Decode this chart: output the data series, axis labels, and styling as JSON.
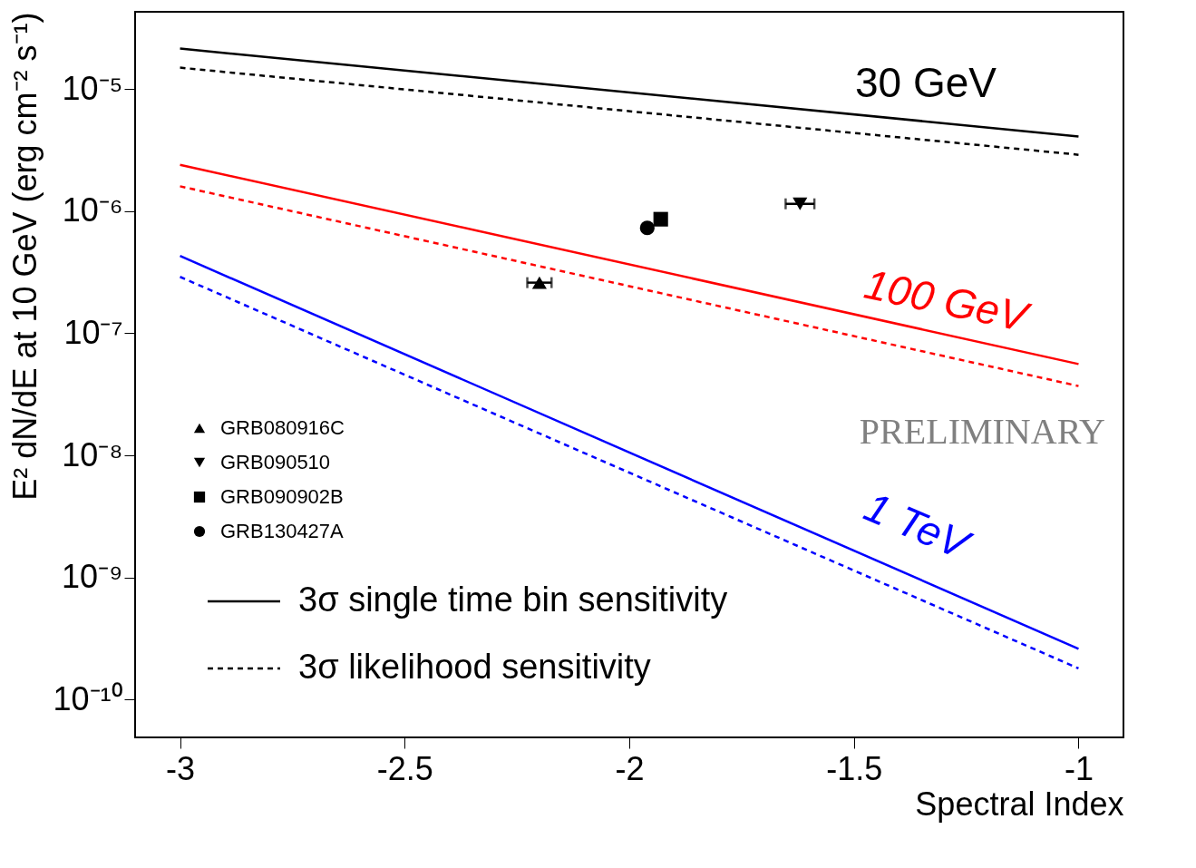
{
  "chart_data": {
    "type": "line",
    "xlabel": "Spectral Index",
    "ylabel": "E² dN/dE at 10 GeV (erg cm⁻² s⁻¹)",
    "log": "y",
    "xlim": [
      -3.1,
      -0.9
    ],
    "xticks": [
      -3,
      -2.5,
      -2,
      -1.5,
      -1
    ],
    "ylim": [
      4.9e-11,
      4.3e-05
    ],
    "yticks": [
      {
        "value": 1e-10,
        "label": "10⁻¹⁰"
      },
      {
        "value": 1e-09,
        "label": "10⁻⁹"
      },
      {
        "value": 1e-08,
        "label": "10⁻⁸"
      },
      {
        "value": 1e-07,
        "label": "10⁻⁷"
      },
      {
        "value": 1e-06,
        "label": "10⁻⁶"
      },
      {
        "value": 1e-05,
        "label": "10⁻⁵"
      }
    ],
    "grid": false,
    "legend": "bottom left",
    "series": [
      {
        "name": "3σ single time bin sensitivity",
        "x": [
          -3,
          -1
        ],
        "values": [
          2.15e-05,
          4.1e-06
        ],
        "color": "#000000",
        "line_style": "solid"
      },
      {
        "name": "3σ likelihood sensitivity",
        "x": [
          -3,
          -1
        ],
        "values": [
          1.5e-05,
          2.9e-06
        ],
        "color": "#000000",
        "line_style": "dashed"
      },
      {
        "x": [
          -3,
          -1
        ],
        "values": [
          2.4e-06,
          5.6e-08
        ],
        "color": "#ff0000",
        "line_style": "solid"
      },
      {
        "x": [
          -3,
          -1
        ],
        "values": [
          1.6e-06,
          3.7e-08
        ],
        "color": "#ff0000",
        "line_style": "dashed"
      },
      {
        "x": [
          -3,
          -1
        ],
        "values": [
          4.3e-07,
          2.6e-10
        ],
        "color": "#0000ff",
        "line_style": "solid"
      },
      {
        "x": [
          -3,
          -1
        ],
        "values": [
          2.9e-07,
          1.8e-10
        ],
        "color": "#0000ff",
        "line_style": "dashed"
      },
      {
        "type": "scatter",
        "name": "GRB080916C",
        "x": [
          -2.2
        ],
        "values": [
          2.6e-07
        ],
        "xerrors": [
          0.027
        ],
        "marker": "triangle",
        "color": "#000000"
      },
      {
        "type": "scatter",
        "name": "GRB090510",
        "x": [
          -1.62
        ],
        "values": [
          1.15e-06
        ],
        "xerrors": [
          0.032
        ],
        "marker": "triangle-down",
        "color": "#000000"
      },
      {
        "type": "scatter",
        "name": "GRB090902B",
        "x": [
          -1.93
        ],
        "values": [
          8.6e-07
        ],
        "marker": "square",
        "color": "#000000"
      },
      {
        "type": "scatter",
        "name": "GRB130427A",
        "x": [
          -1.96
        ],
        "values": [
          7.3e-07
        ],
        "marker": "circle",
        "color": "#000000"
      }
    ],
    "annotations": [
      "30 GeV",
      "100 GeV",
      "1 TeV",
      "PRELIMINARY"
    ]
  }
}
